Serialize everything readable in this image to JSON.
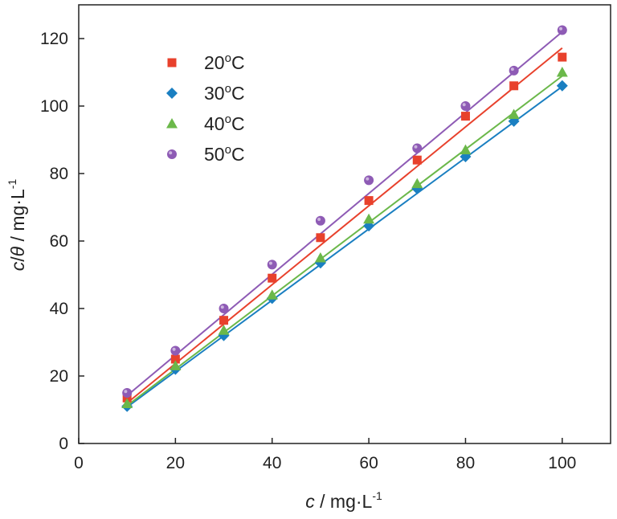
{
  "chart_data": {
    "type": "scatter",
    "x": [
      10,
      20,
      30,
      40,
      50,
      60,
      70,
      80,
      90,
      100
    ],
    "xlabel": {
      "italic": "c",
      "rest": " / mg·L",
      "sup": "-1"
    },
    "ylabel": {
      "italic1": "c",
      "slash": "/",
      "italic2": "θ",
      "rest": " / mg·L",
      "sup": "-1"
    },
    "xlim": [
      0,
      110
    ],
    "ylim": [
      0,
      130
    ],
    "xticks": [
      0,
      20,
      40,
      60,
      80,
      100
    ],
    "yticks": [
      0,
      20,
      40,
      60,
      80,
      100,
      120
    ],
    "grid": false,
    "legend_position": "top-left",
    "series": [
      {
        "name": "20",
        "unit": "oC",
        "marker": "square",
        "color": "#e8412c",
        "values": [
          13.5,
          25.0,
          36.5,
          49.0,
          61.0,
          72.0,
          84.0,
          97.0,
          106.0,
          114.5
        ],
        "fit": [
          12.0,
          117.2
        ]
      },
      {
        "name": "30",
        "unit": "oC",
        "marker": "diamond",
        "color": "#1a7fc1",
        "values": [
          11.0,
          22.0,
          32.0,
          43.0,
          53.5,
          64.5,
          75.5,
          85.0,
          95.5,
          106.0
        ],
        "fit": [
          10.8,
          105.8
        ]
      },
      {
        "name": "40",
        "unit": "oC",
        "marker": "triangle",
        "color": "#6bb84a",
        "values": [
          11.8,
          23.0,
          33.5,
          44.0,
          55.0,
          66.5,
          77.0,
          87.0,
          97.5,
          110.0
        ],
        "fit": [
          11.2,
          108.9
        ]
      },
      {
        "name": "50",
        "unit": "oC",
        "marker": "circle",
        "color": "#8e5bb5",
        "values": [
          15.0,
          27.5,
          40.0,
          53.0,
          66.0,
          78.0,
          87.5,
          100.0,
          110.5,
          122.5
        ],
        "fit": [
          14.2,
          122.0
        ]
      }
    ]
  }
}
